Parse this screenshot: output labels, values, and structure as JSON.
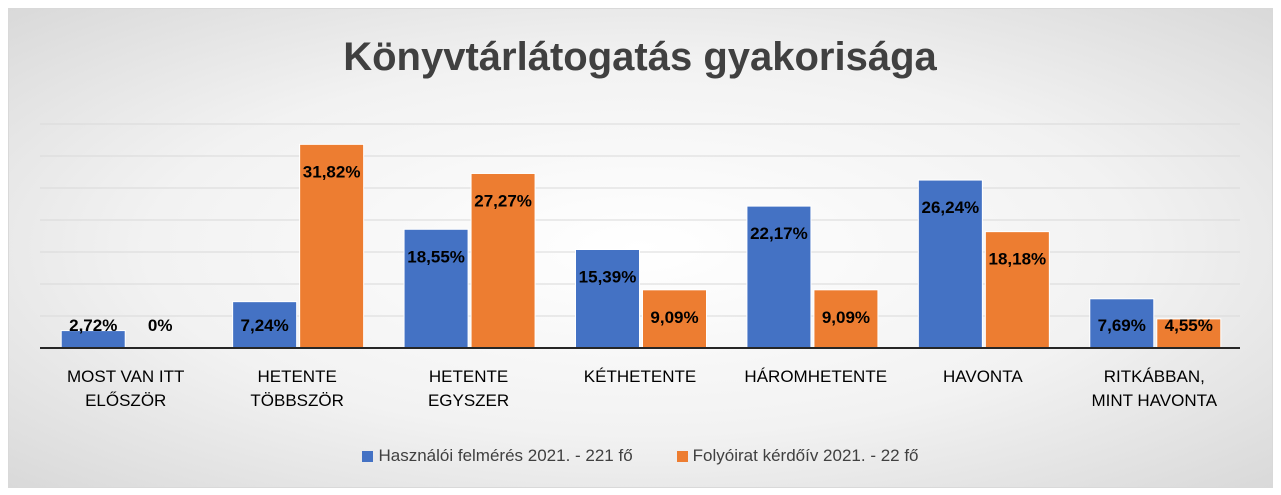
{
  "chart_data": {
    "type": "bar",
    "title": "Könyvtárlátogatás gyakorisága",
    "categories": [
      "MOST VAN ITT ELŐSZÖR",
      "HETENTE TÖBBSZÖR",
      "HETENTE EGYSZER",
      "KÉTHETENTE",
      "HÁROMHETENTE",
      "HAVONTA",
      "RITKÁBBAN, MINT HAVONTA"
    ],
    "series": [
      {
        "name": "Használói felmérés 2021. - 221 fő",
        "color": "#4472c4",
        "values": [
          2.72,
          7.24,
          18.55,
          15.39,
          22.17,
          26.24,
          7.69
        ],
        "value_labels": [
          "2,72%",
          "7,24%",
          "18,55%",
          "15,39%",
          "22,17%",
          "26,24%",
          "7,69%"
        ]
      },
      {
        "name": "Folyóirat kérdőív 2021. - 22 fő",
        "color": "#ed7d31",
        "values": [
          0,
          31.82,
          27.27,
          9.09,
          9.09,
          18.18,
          4.55
        ],
        "value_labels": [
          "0%",
          "31,82%",
          "27,27%",
          "9,09%",
          "9,09%",
          "18,18%",
          "4,55%"
        ]
      }
    ],
    "ylim": [
      0,
      35
    ],
    "yticks": [
      0,
      5,
      10,
      15,
      20,
      25,
      30,
      35
    ],
    "grid": true,
    "legend": "bottom"
  }
}
